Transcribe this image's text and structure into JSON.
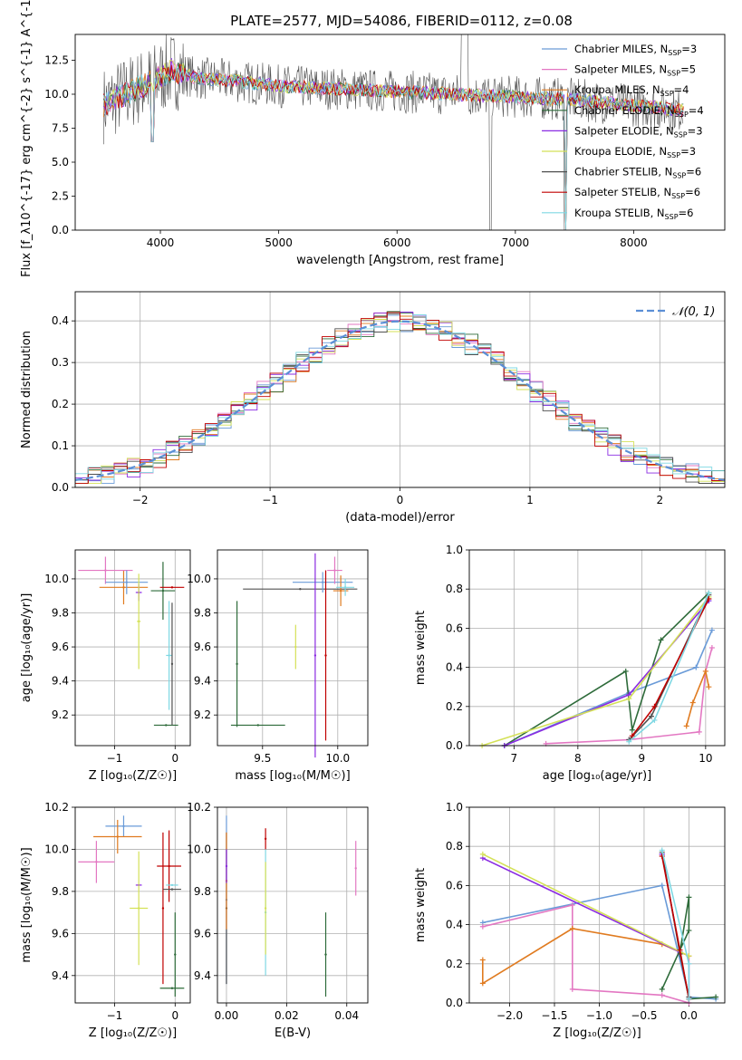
{
  "colors": {
    "chabrier_miles": "#6a9bd8",
    "salpeter_miles": "#e377c2",
    "kroupa_miles": "#e07b20",
    "chabrier_elodie": "#2e6b3a",
    "salpeter_elodie": "#8a2be2",
    "kroupa_elodie": "#d4e157",
    "chabrier_stelib": "#505050",
    "salpeter_stelib": "#c00000",
    "kroupa_stelib": "#7fd8e3",
    "normal": "#5b8fd6",
    "grid": "#b0b0b0"
  },
  "chart_data": [
    {
      "type": "line",
      "title": "PLATE=2577, MJD=54086, FIBERID=0112, z=0.08",
      "xlabel": "wavelength [Angstrom, rest frame]",
      "ylabel": "Flux [f_λ10^{-17} erg cm^{-2} s^{-1} A^{-1}]",
      "xlim": [
        3280,
        8770
      ],
      "ylim": [
        0,
        14.4
      ],
      "xticks": [
        "4000",
        "5000",
        "6000",
        "7000",
        "8000"
      ],
      "yticks": [
        "0.0",
        "2.5",
        "5.0",
        "7.5",
        "10.0",
        "12.5"
      ],
      "grid": false,
      "legend_position": "top-right",
      "legend": [
        {
          "label": "Chabrier MILES, N",
          "sub": "SSP",
          "suffix": "=3",
          "color_key": "chabrier_miles"
        },
        {
          "label": "Salpeter MILES, N",
          "sub": "SSP",
          "suffix": "=5",
          "color_key": "salpeter_miles"
        },
        {
          "label": "Kroupa MILES, N",
          "sub": "SSP",
          "suffix": "=4",
          "color_key": "kroupa_miles"
        },
        {
          "label": "Chabrier ELODIE, N",
          "sub": "SSP",
          "suffix": "=4",
          "color_key": "chabrier_elodie"
        },
        {
          "label": "Salpeter ELODIE, N",
          "sub": "SSP",
          "suffix": "=3",
          "color_key": "salpeter_elodie"
        },
        {
          "label": "Kroupa ELODIE, N",
          "sub": "SSP",
          "suffix": "=3",
          "color_key": "kroupa_elodie"
        },
        {
          "label": "Chabrier STELIB, N",
          "sub": "SSP",
          "suffix": "=6",
          "color_key": "chabrier_stelib"
        },
        {
          "label": "Salpeter STELIB, N",
          "sub": "SSP",
          "suffix": "=6",
          "color_key": "salpeter_stelib"
        },
        {
          "label": "Kroupa STELIB, N",
          "sub": "SSP",
          "suffix": "=6",
          "color_key": "kroupa_stelib"
        }
      ],
      "spectrum_shape": {
        "wavelength_range": [
          3520,
          8420
        ],
        "approx_flux": [
          [
            3520,
            9.2
          ],
          [
            3700,
            10.0
          ],
          [
            3900,
            10.8
          ],
          [
            4100,
            11.8
          ],
          [
            4300,
            11.2
          ],
          [
            4600,
            11.0
          ],
          [
            5000,
            10.6
          ],
          [
            5500,
            10.4
          ],
          [
            6000,
            10.2
          ],
          [
            6500,
            10.0
          ],
          [
            7000,
            9.8
          ],
          [
            7500,
            9.6
          ],
          [
            8000,
            9.2
          ],
          [
            8420,
            8.8
          ]
        ]
      }
    },
    {
      "type": "line",
      "xlabel": "(data-model)/error",
      "ylabel": "Normed distribution",
      "xlim": [
        -2.5,
        2.5
      ],
      "ylim": [
        0,
        0.47
      ],
      "xticks": [
        "−2",
        "−1",
        "0",
        "1",
        "2"
      ],
      "yticks": [
        "0.0",
        "0.1",
        "0.2",
        "0.3",
        "0.4"
      ],
      "grid": true,
      "legend_position": "top-right",
      "legend_label": "𝒩(0, 1)",
      "bin_width": 0.1,
      "histograms": "nine residual histograms (one per model) approximately following the standard normal density"
    },
    {
      "type": "scatter",
      "xlabel": "Z [log₁₀(Z/Z☉)]",
      "ylabel": "age  [log₁₀(age/yr)]",
      "xlim": [
        -1.65,
        0.25
      ],
      "ylim": [
        9.02,
        10.17
      ],
      "xticks": [
        "−1",
        "0"
      ],
      "yticks": [
        "9.2",
        "9.4",
        "9.6",
        "9.8",
        "10.0"
      ],
      "grid": true,
      "points": [
        {
          "x": -0.85,
          "y": 9.95,
          "xerr": 0.4,
          "yerr": 0.1,
          "color_key": "kroupa_miles"
        },
        {
          "x": -1.15,
          "y": 10.05,
          "xerr": 0.45,
          "yerr": 0.08,
          "color_key": "salpeter_miles"
        },
        {
          "x": -0.8,
          "y": 9.98,
          "xerr": 0.35,
          "yerr": 0.07,
          "color_key": "chabrier_miles"
        },
        {
          "x": -0.6,
          "y": 9.92,
          "xerr": 0.05,
          "yerr": 0.05,
          "color_key": "salpeter_elodie"
        },
        {
          "x": -0.6,
          "y": 9.75,
          "xerr": 0.03,
          "yerr": 0.28,
          "color_key": "kroupa_elodie"
        },
        {
          "x": -0.2,
          "y": 9.93,
          "xerr": 0.2,
          "yerr": 0.17,
          "color_key": "chabrier_elodie"
        },
        {
          "x": -0.1,
          "y": 9.55,
          "xerr": 0.05,
          "yerr": 0.32,
          "color_key": "kroupa_stelib"
        },
        {
          "x": -0.15,
          "y": 9.14,
          "xerr": 0.2,
          "yerr": 0.0,
          "color_key": "chabrier_elodie"
        },
        {
          "x": -0.05,
          "y": 9.95,
          "xerr": 0.2,
          "yerr": 0.0,
          "color_key": "salpeter_stelib"
        },
        {
          "x": -0.05,
          "y": 9.5,
          "xerr": 0.0,
          "yerr": 0.36,
          "color_key": "chabrier_stelib"
        }
      ]
    },
    {
      "type": "scatter",
      "xlabel": "mass [log₁₀(M/M☉)]",
      "xlim": [
        9.2,
        10.2
      ],
      "ylim": [
        9.02,
        10.17
      ],
      "xticks": [
        "9.5",
        "10.0"
      ],
      "yticks": [
        "9.2",
        "9.4",
        "9.6",
        "9.8",
        "10.0"
      ],
      "grid": true,
      "points": [
        {
          "x": 9.75,
          "y": 9.94,
          "xerr": 0.38,
          "yerr": 0.0,
          "color_key": "chabrier_stelib"
        },
        {
          "x": 9.9,
          "y": 9.98,
          "xerr": 0.2,
          "yerr": 0.06,
          "color_key": "chabrier_miles"
        },
        {
          "x": 9.72,
          "y": 9.6,
          "xerr": 0.0,
          "yerr": 0.13,
          "color_key": "kroupa_elodie"
        },
        {
          "x": 9.85,
          "y": 9.55,
          "xerr": 0.0,
          "yerr": 0.6,
          "color_key": "salpeter_elodie"
        },
        {
          "x": 9.92,
          "y": 9.55,
          "xerr": 0.0,
          "yerr": 0.5,
          "color_key": "salpeter_stelib"
        },
        {
          "x": 9.98,
          "y": 10.05,
          "xerr": 0.05,
          "yerr": 0.08,
          "color_key": "salpeter_miles"
        },
        {
          "x": 9.47,
          "y": 9.14,
          "xerr": 0.18,
          "yerr": 0.0,
          "color_key": "chabrier_elodie"
        },
        {
          "x": 9.33,
          "y": 9.5,
          "xerr": 0.0,
          "yerr": 0.37,
          "color_key": "chabrier_elodie"
        },
        {
          "x": 10.02,
          "y": 9.93,
          "xerr": 0.05,
          "yerr": 0.09,
          "color_key": "kroupa_miles"
        },
        {
          "x": 10.05,
          "y": 9.95,
          "xerr": 0.06,
          "yerr": 0.05,
          "color_key": "kroupa_stelib"
        }
      ]
    },
    {
      "type": "line",
      "xlabel": "age  [log₁₀(age/yr)]",
      "ylabel": "mass weight",
      "xlim": [
        6.3,
        10.3
      ],
      "ylim": [
        0,
        1.0
      ],
      "xticks": [
        "7",
        "8",
        "9",
        "10"
      ],
      "yticks": [
        "0.0",
        "0.2",
        "0.4",
        "0.6",
        "0.8",
        "1.0"
      ],
      "grid": true,
      "series": [
        {
          "color_key": "chabrier_miles",
          "x": [
            6.85,
            8.8,
            9.85,
            10.1
          ],
          "y": [
            0.0,
            0.27,
            0.4,
            0.59
          ]
        },
        {
          "color_key": "salpeter_miles",
          "x": [
            7.5,
            8.8,
            9.9,
            10.0,
            10.1
          ],
          "y": [
            0.01,
            0.03,
            0.07,
            0.38,
            0.5
          ]
        },
        {
          "color_key": "kroupa_miles",
          "x": [
            9.7,
            9.8,
            10.0,
            10.05
          ],
          "y": [
            0.1,
            0.22,
            0.38,
            0.3
          ]
        },
        {
          "color_key": "chabrier_elodie",
          "x": [
            6.85,
            8.75,
            8.85,
            9.3,
            10.05
          ],
          "y": [
            0.0,
            0.38,
            0.08,
            0.54,
            0.78
          ]
        },
        {
          "color_key": "salpeter_elodie",
          "x": [
            6.85,
            8.8,
            10.05
          ],
          "y": [
            0.0,
            0.26,
            0.74
          ]
        },
        {
          "color_key": "kroupa_elodie",
          "x": [
            6.5,
            8.8,
            10.05
          ],
          "y": [
            0.0,
            0.24,
            0.76
          ]
        },
        {
          "color_key": "chabrier_stelib",
          "x": [
            8.8,
            9.15,
            10.05
          ],
          "y": [
            0.03,
            0.15,
            0.77
          ]
        },
        {
          "color_key": "salpeter_stelib",
          "x": [
            8.85,
            9.2,
            10.05
          ],
          "y": [
            0.05,
            0.2,
            0.75
          ]
        },
        {
          "color_key": "kroupa_stelib",
          "x": [
            8.8,
            9.2,
            10.05
          ],
          "y": [
            0.02,
            0.13,
            0.78
          ]
        }
      ]
    },
    {
      "type": "scatter",
      "xlabel": "Z [log₁₀(Z/Z☉)]",
      "ylabel": "mass [log₁₀(M/M☉)]",
      "xlim": [
        -1.65,
        0.25
      ],
      "ylim": [
        9.27,
        10.2
      ],
      "xticks": [
        "−1",
        "0"
      ],
      "yticks": [
        "9.4",
        "9.6",
        "9.8",
        "10.0",
        "10.2"
      ],
      "grid": true,
      "points": [
        {
          "x": -0.85,
          "y": 10.11,
          "xerr": 0.3,
          "yerr": 0.05,
          "color_key": "chabrier_miles"
        },
        {
          "x": -0.95,
          "y": 10.06,
          "xerr": 0.4,
          "yerr": 0.08,
          "color_key": "kroupa_miles"
        },
        {
          "x": -1.3,
          "y": 9.94,
          "xerr": 0.3,
          "yerr": 0.1,
          "color_key": "salpeter_miles"
        },
        {
          "x": -0.6,
          "y": 9.83,
          "xerr": 0.05,
          "yerr": 0.0,
          "color_key": "salpeter_elodie"
        },
        {
          "x": -0.6,
          "y": 9.72,
          "xerr": 0.15,
          "yerr": 0.27,
          "color_key": "kroupa_elodie"
        },
        {
          "x": -0.2,
          "y": 9.72,
          "xerr": 0.0,
          "yerr": 0.36,
          "color_key": "salpeter_stelib"
        },
        {
          "x": -0.1,
          "y": 9.92,
          "xerr": 0.2,
          "yerr": 0.17,
          "color_key": "salpeter_stelib"
        },
        {
          "x": -0.05,
          "y": 9.83,
          "xerr": 0.1,
          "yerr": 0.0,
          "color_key": "kroupa_stelib"
        },
        {
          "x": -0.05,
          "y": 9.81,
          "xerr": 0.15,
          "yerr": 0.0,
          "color_key": "chabrier_stelib"
        },
        {
          "x": -0.05,
          "y": 9.34,
          "xerr": 0.2,
          "yerr": 0.0,
          "color_key": "chabrier_elodie"
        },
        {
          "x": 0.0,
          "y": 9.5,
          "xerr": 0.0,
          "yerr": 0.2,
          "color_key": "chabrier_elodie"
        }
      ]
    },
    {
      "type": "scatter",
      "xlabel": "E(B-V)",
      "xlim": [
        -0.003,
        0.047
      ],
      "ylim": [
        9.27,
        10.2
      ],
      "xticks": [
        "0.00",
        "0.02",
        "0.04"
      ],
      "yticks": [
        "9.4",
        "9.6",
        "9.8",
        "10.0",
        "10.2"
      ],
      "grid": true,
      "points": [
        {
          "x": 0.0,
          "y": 9.76,
          "xerr": 0.0,
          "yerr": 0.4,
          "color_key": "chabrier_miles"
        },
        {
          "x": 0.0,
          "y": 9.72,
          "xerr": 0.0,
          "yerr": 0.36,
          "color_key": "chabrier_stelib"
        },
        {
          "x": 0.0,
          "y": 9.85,
          "xerr": 0.0,
          "yerr": 0.23,
          "color_key": "kroupa_miles"
        },
        {
          "x": 0.0,
          "y": 9.92,
          "xerr": 0.0,
          "yerr": 0.08,
          "color_key": "salpeter_elodie"
        },
        {
          "x": 0.013,
          "y": 10.05,
          "xerr": 0.0,
          "yerr": 0.05,
          "color_key": "salpeter_stelib"
        },
        {
          "x": 0.013,
          "y": 9.7,
          "xerr": 0.0,
          "yerr": 0.3,
          "color_key": "kroupa_stelib"
        },
        {
          "x": 0.013,
          "y": 9.72,
          "xerr": 0.0,
          "yerr": 0.22,
          "color_key": "kroupa_elodie"
        },
        {
          "x": 0.033,
          "y": 9.5,
          "xerr": 0.0,
          "yerr": 0.2,
          "color_key": "chabrier_elodie"
        },
        {
          "x": 0.043,
          "y": 9.91,
          "xerr": 0.0,
          "yerr": 0.13,
          "color_key": "salpeter_miles"
        }
      ]
    },
    {
      "type": "line",
      "xlabel": "Z [log₁₀(Z/Z☉)]",
      "ylabel": "mass weight",
      "xlim": [
        -2.45,
        0.4
      ],
      "ylim": [
        0,
        1.0
      ],
      "xticks": [
        "−2.0",
        "−1.5",
        "−1.0",
        "−0.5",
        "0.0"
      ],
      "yticks": [
        "0.0",
        "0.2",
        "0.4",
        "0.6",
        "0.8",
        "1.0"
      ],
      "grid": true,
      "series": [
        {
          "color_key": "chabrier_miles",
          "x": [
            -2.3,
            -0.3,
            0.0,
            0.3
          ],
          "y": [
            0.41,
            0.6,
            0.03,
            0.02
          ]
        },
        {
          "color_key": "salpeter_miles",
          "x": [
            -2.3,
            -1.3,
            -1.3,
            -0.3,
            0.0,
            0.0
          ],
          "y": [
            0.39,
            0.5,
            0.07,
            0.04,
            0.0,
            0.24
          ]
        },
        {
          "color_key": "kroupa_miles",
          "x": [
            -2.3,
            -2.3,
            -1.3,
            -0.3,
            0.0
          ],
          "y": [
            0.22,
            0.1,
            0.38,
            0.3,
            0.24
          ]
        },
        {
          "color_key": "chabrier_elodie",
          "x": [
            -0.3,
            0.0,
            0.0,
            -0.1,
            0.0,
            0.3
          ],
          "y": [
            0.07,
            0.37,
            0.54,
            0.26,
            0.02,
            0.03
          ]
        },
        {
          "color_key": "salpeter_elodie",
          "x": [
            -2.3,
            -0.1,
            -0.3,
            -0.3
          ],
          "y": [
            0.74,
            0.26,
            0.76,
            0.76
          ]
        },
        {
          "color_key": "kroupa_elodie",
          "x": [
            -2.3,
            0.0
          ],
          "y": [
            0.76,
            0.24
          ]
        },
        {
          "color_key": "chabrier_stelib",
          "x": [
            -0.3,
            -0.1,
            0.0
          ],
          "y": [
            0.77,
            0.25,
            0.03
          ]
        },
        {
          "color_key": "salpeter_stelib",
          "x": [
            -0.3,
            -0.1,
            0.0
          ],
          "y": [
            0.75,
            0.27,
            0.02
          ]
        },
        {
          "color_key": "kroupa_stelib",
          "x": [
            -0.3,
            0.0,
            0.0
          ],
          "y": [
            0.78,
            0.2,
            0.02
          ]
        }
      ]
    }
  ]
}
